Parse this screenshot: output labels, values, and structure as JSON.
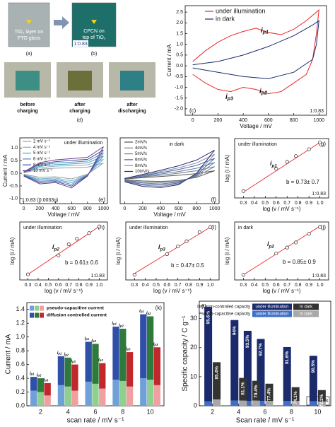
{
  "photos": {
    "a_caption": [
      "TiO₂ layer on",
      "FTO glass"
    ],
    "a_label": "(a)",
    "b_caption": [
      "CPCN on",
      "top of TiO₂"
    ],
    "b_ratio": "1:0.83",
    "b_label": "(b)",
    "d_captions": [
      [
        "before",
        "charging"
      ],
      [
        "after",
        "charging"
      ],
      [
        "after",
        "discharging"
      ]
    ],
    "d_label": "(d)"
  },
  "chart_data": [
    {
      "type": "line",
      "panel": "(c)",
      "ratio": "1:0.83",
      "xlabel": "Voltage / mV",
      "ylabel": "Current / mA",
      "xlim": [
        -60,
        1060
      ],
      "xticks": [
        0,
        200,
        400,
        600,
        800,
        1000
      ],
      "ylim": [
        -2.3,
        2.8
      ],
      "yticks": [
        {
          "value": -2,
          "label": "-2.0"
        },
        -1.5,
        {
          "value": -1,
          "label": "-1.0"
        },
        -0.5,
        {
          "value": 0,
          "label": "0.0"
        },
        0.5,
        {
          "value": 1,
          "label": "1.0"
        },
        1.5,
        {
          "value": 2,
          "label": "2.0"
        },
        2.5
      ],
      "annotations": [
        {
          "i": "i",
          "sub": "p1"
        },
        {
          "i": "i",
          "sub": "p2"
        },
        {
          "i": "i",
          "sub": "p3"
        }
      ],
      "series": [
        {
          "name": "under illumination",
          "color": "#e8262b",
          "x": [
            0,
            100,
            200,
            300,
            400,
            500,
            600,
            700,
            800,
            900,
            1000,
            980,
            950,
            900,
            800,
            700,
            600,
            500,
            400,
            300,
            200,
            100,
            0
          ],
          "values": [
            0.2,
            0.7,
            1.1,
            1.4,
            1.6,
            1.75,
            1.55,
            1.45,
            1.7,
            2.1,
            2.6,
            1.5,
            0.3,
            -0.4,
            -0.8,
            -1.2,
            -1.3,
            -1.1,
            -1.0,
            -1.2,
            -1.1,
            -0.8,
            -0.4
          ]
        },
        {
          "name": "in dark",
          "color": "#1b2a6b",
          "x": [
            0,
            200,
            400,
            600,
            800,
            950,
            1000,
            980,
            950,
            800,
            600,
            400,
            200,
            0
          ],
          "values": [
            0.05,
            0.2,
            0.5,
            0.9,
            1.4,
            1.9,
            2.1,
            1.0,
            0.3,
            -0.3,
            -0.6,
            -0.5,
            -0.3,
            -0.1
          ]
        }
      ]
    },
    {
      "type": "line",
      "panel": "(e)",
      "note": "under illumination",
      "ratio": "1:0.83 (0.0033g)",
      "xlabel": "Voltage / mV",
      "ylabel": "Current / mA",
      "xlim": [
        -50,
        1050
      ],
      "xticks": [
        0,
        200,
        400,
        600,
        800,
        1000
      ],
      "ylim": [
        -1.2,
        1.4
      ],
      "yticks": [
        {
          "value": -1,
          "label": "-1.0"
        },
        -0.5,
        {
          "value": 0,
          "label": "0.0"
        },
        0.5,
        {
          "value": 1,
          "label": "1.0"
        }
      ],
      "x": [
        0,
        200,
        400,
        600,
        800,
        1000,
        800,
        600,
        400,
        200,
        0
      ],
      "series": [
        {
          "name": "2 mV s⁻¹",
          "color": "#9e9e9e",
          "values": [
            0.02,
            0.16,
            0.2,
            0.22,
            0.24,
            0.4,
            -0.04,
            -0.22,
            -0.14,
            -0.16,
            -0.04
          ]
        },
        {
          "name": "4 mV s⁻¹",
          "color": "#7fb3c8",
          "values": [
            0.03,
            0.22,
            0.28,
            0.3,
            0.33,
            0.55,
            -0.06,
            -0.3,
            -0.19,
            -0.22,
            -0.06
          ]
        },
        {
          "name": "5 mV s⁻¹",
          "color": "#3aa6c6",
          "values": [
            0.03,
            0.27,
            0.34,
            0.37,
            0.41,
            0.68,
            -0.07,
            -0.37,
            -0.24,
            -0.27,
            -0.07
          ]
        },
        {
          "name": "6 mV s⁻¹",
          "color": "#5b86c5",
          "values": [
            0.04,
            0.32,
            0.4,
            0.44,
            0.48,
            0.8,
            -0.08,
            -0.44,
            -0.28,
            -0.32,
            -0.08
          ]
        },
        {
          "name": "8 mV s⁻¹",
          "color": "#3f4f9e",
          "values": [
            0.05,
            0.37,
            0.46,
            0.51,
            0.55,
            0.92,
            -0.09,
            -0.51,
            -0.32,
            -0.37,
            -0.09
          ]
        },
        {
          "name": "10 mV s⁻¹",
          "color": "#6a3d8a",
          "values": [
            0.05,
            0.42,
            0.53,
            0.58,
            0.63,
            1.05,
            -0.11,
            -0.58,
            -0.37,
            -0.42,
            -0.11
          ]
        }
      ]
    },
    {
      "type": "line",
      "panel": "(f)",
      "note": "in dark",
      "xlabel": "Voltage / mV",
      "xlim": [
        -50,
        1050
      ],
      "xticks": [
        0,
        200,
        400,
        600,
        800,
        1000
      ],
      "ylim": [
        -0.6,
        1.0
      ],
      "x": [
        0,
        200,
        400,
        600,
        800,
        1000,
        800,
        600,
        400,
        200,
        0
      ],
      "series": [
        {
          "name": "2mV/s",
          "color": "#555555",
          "values": [
            0,
            0.03,
            0.06,
            0.09,
            0.13,
            0.2,
            0.04,
            -0.04,
            -0.06,
            -0.05,
            -0.02
          ]
        },
        {
          "name": "4mV/s",
          "color": "#7a7a7a",
          "values": [
            0.01,
            0.05,
            0.09,
            0.14,
            0.2,
            0.3,
            0.06,
            -0.06,
            -0.09,
            -0.08,
            -0.03
          ]
        },
        {
          "name": "5mV/s",
          "color": "#5a7db0",
          "values": [
            0.01,
            0.06,
            0.12,
            0.18,
            0.26,
            0.4,
            0.08,
            -0.08,
            -0.12,
            -0.1,
            -0.04
          ]
        },
        {
          "name": "6mV/s",
          "color": "#3a5fa0",
          "values": [
            0.01,
            0.08,
            0.15,
            0.23,
            0.33,
            0.5,
            0.1,
            -0.1,
            -0.15,
            -0.13,
            -0.05
          ]
        },
        {
          "name": "8mV/s",
          "color": "#8888aa",
          "values": [
            0.01,
            0.09,
            0.18,
            0.27,
            0.39,
            0.6,
            0.12,
            -0.12,
            -0.18,
            -0.15,
            -0.06
          ]
        },
        {
          "name": "10mV/s",
          "color": "#2a2a6a",
          "values": [
            0.01,
            0.11,
            0.21,
            0.32,
            0.46,
            0.7,
            0.14,
            -0.14,
            -0.21,
            -0.18,
            -0.07
          ]
        }
      ]
    },
    {
      "type": "scatter",
      "panel": "(g)",
      "note": "under illumination",
      "ratio": "1:0.83",
      "fit_text": "b = 0.73± 0.7",
      "label": {
        "i": "i",
        "sub": "p1"
      },
      "xlabel": "log (v / mV s⁻¹)",
      "ylabel": "log (i / mA)",
      "xlim": [
        0.22,
        1.08
      ],
      "xticks": [
        0.3,
        0.4,
        0.5,
        0.6,
        0.7,
        0.8,
        0.9,
        {
          "value": 1,
          "label": "1.0"
        }
      ],
      "ylim": [
        -0.45,
        0.16
      ],
      "x": [
        0.3,
        0.6,
        0.7,
        0.78,
        0.9,
        1.0
      ],
      "values": [
        -0.38,
        -0.15,
        -0.08,
        -0.02,
        0.05,
        0.12
      ],
      "fit": {
        "x": [
          0.3,
          1.0
        ],
        "values": [
          -0.39,
          0.12
        ]
      }
    },
    {
      "type": "scatter",
      "panel": "(h)",
      "note": "under illumination",
      "ratio": "1:0.83",
      "fit_text": "b = 0.61± 0.6",
      "label": {
        "i": "i",
        "sub": "p2"
      },
      "xlabel": "log (v / mV s⁻¹)",
      "ylabel": "log (i / mA)",
      "xlim": [
        0.22,
        1.08
      ],
      "xticks": [
        0.3,
        0.4,
        0.5,
        0.6,
        0.7,
        0.8,
        0.9,
        {
          "value": 1,
          "label": "1.0"
        }
      ],
      "ylim": [
        -0.42,
        0.1
      ],
      "x": [
        0.3,
        0.6,
        0.7,
        0.78,
        0.9,
        1.0
      ],
      "values": [
        -0.37,
        -0.2,
        -0.1,
        -0.05,
        0.0,
        0.06
      ],
      "fit": {
        "x": [
          0.3,
          1.0
        ],
        "values": [
          -0.37,
          0.06
        ]
      }
    },
    {
      "type": "scatter",
      "panel": "(i)",
      "note": "under illumination",
      "fit_text": "b = 0.47± 0.5",
      "label": {
        "i": "i",
        "sub": "p3"
      },
      "xlabel": "log (v / mV s⁻¹)",
      "ylabel": "log (i / mA)",
      "xlim": [
        0.22,
        1.08
      ],
      "xticks": [
        0.3,
        0.4,
        0.5,
        0.6,
        0.7,
        0.8,
        0.9,
        {
          "value": 1,
          "label": "1.0"
        }
      ],
      "ylim": [
        -0.5,
        -0.05
      ],
      "x": [
        0.3,
        0.6,
        0.7,
        0.78,
        0.9,
        1.0
      ],
      "values": [
        -0.46,
        -0.3,
        -0.24,
        -0.2,
        -0.13,
        -0.09
      ],
      "fit": {
        "x": [
          0.3,
          1.0
        ],
        "values": [
          -0.45,
          -0.09
        ]
      }
    },
    {
      "type": "scatter",
      "panel": "(j)",
      "note": "in dark",
      "ratio": "1:0.83",
      "fit_text": "b = 0.85± 0.9",
      "label": {
        "i": "i",
        "sub": "p2"
      },
      "xlabel": "log (v / mV s⁻¹)",
      "ylabel": "log (i / mA)",
      "xlim": [
        0.22,
        1.08
      ],
      "xticks": [
        0.3,
        0.4,
        0.5,
        0.6,
        0.7,
        0.8,
        0.9,
        {
          "value": 1,
          "label": "1.0"
        }
      ],
      "ylim": [
        -0.56,
        0.12
      ],
      "x": [
        0.3,
        0.6,
        0.7,
        0.78,
        0.9,
        1.0
      ],
      "values": [
        -0.5,
        -0.25,
        -0.18,
        -0.12,
        -0.02,
        0.06
      ],
      "fit": {
        "x": [
          0.3,
          1.0
        ],
        "values": [
          -0.5,
          0.07
        ]
      }
    },
    {
      "type": "bar",
      "panel": "(k)",
      "xlabel": "scan rate / mV s⁻¹",
      "ylabel": "Current / mA",
      "categories": [
        "2",
        "4",
        "6",
        "8",
        "10"
      ],
      "ylim": [
        0,
        1.5
      ],
      "yticks": [
        {
          "value": 0,
          "label": "0.0"
        },
        0.2,
        0.4,
        0.6,
        0.8,
        {
          "value": 1,
          "label": "1.0"
        },
        1.2,
        1.4
      ],
      "legend": [
        "pseudo-capacitive current",
        "diffusion controlled current"
      ],
      "series": [
        {
          "label": {
            "i": "i",
            "sub": "p1"
          },
          "colors": [
            "#6fa0d8",
            "#2f4fa8"
          ],
          "pseudo": [
            0.22,
            0.3,
            0.35,
            0.38,
            0.4
          ],
          "diffusion": [
            0.2,
            0.42,
            0.58,
            0.77,
            0.93
          ]
        },
        {
          "label": {
            "i": "i",
            "sub": "p2"
          },
          "colors": [
            "#8fcf8f",
            "#2e7a3a"
          ],
          "pseudo": [
            0.2,
            0.28,
            0.32,
            0.36,
            0.38
          ],
          "diffusion": [
            0.2,
            0.42,
            0.58,
            0.76,
            0.92
          ]
        },
        {
          "label": {
            "i": "i",
            "sub": "p3"
          },
          "colors": [
            "#f0a0a0",
            "#c0282d"
          ],
          "pseudo": [
            0.15,
            0.22,
            0.25,
            0.28,
            0.3
          ],
          "diffusion": [
            0.18,
            0.38,
            0.37,
            0.5,
            0.55
          ]
        }
      ]
    },
    {
      "type": "bar",
      "panel": "(l)",
      "ratio": "1: 0.83",
      "xlabel": "Scan rate / mV s⁻¹",
      "ylabel": "Specific capacity / C g⁻¹",
      "x": [
        2,
        4,
        5,
        6,
        8,
        10
      ],
      "xlim": [
        1,
        11
      ],
      "xticks": [
        2,
        4,
        6,
        8,
        10
      ],
      "ylim": [
        0,
        36
      ],
      "yticks": [
        0,
        10,
        20,
        30
      ],
      "legend": [
        "Diffusion-controlled capacity",
        "Pseudo-capacitive capacity"
      ],
      "series": [
        {
          "name": "under illumination",
          "colors": [
            "#3e6fc8",
            "#1b2a6b"
          ],
          "pseudo": [
            1.5,
            1.8,
            1.7,
            1.7,
            1.7,
            1.6
          ],
          "diffusion": [
            32.5,
            27.7,
            24.1,
            21.3,
            18.5,
            15.6
          ],
          "share_labels": [
            "95.6%",
            "94%",
            "93.5%",
            "92.7%",
            "91.6%",
            "90.5%"
          ]
        },
        {
          "name": "In dark",
          "colors": [
            "#a8a8a8",
            "#333333"
          ],
          "pseudo": [
            2.2,
            1.8,
            1.8,
            1.7,
            1.7,
            1.5
          ],
          "diffusion": [
            12.8,
            7.8,
            6.8,
            5.9,
            4.7,
            3.9
          ],
          "share_labels": [
            "85.4%",
            "81.1%",
            "79.4%",
            "77.4%",
            "74.1%",
            "72.2%"
          ]
        }
      ]
    }
  ]
}
